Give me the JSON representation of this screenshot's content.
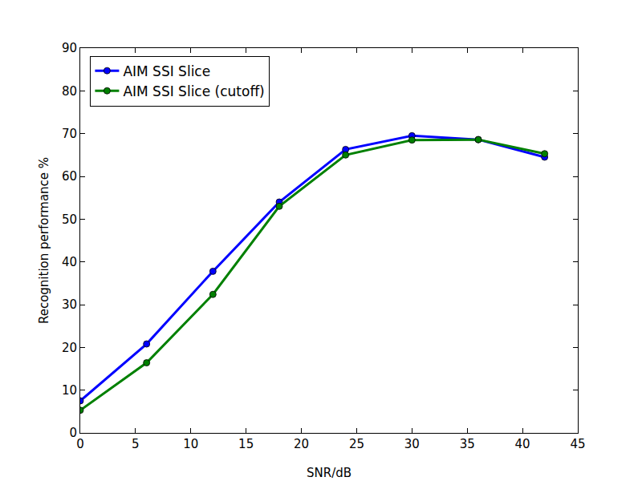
{
  "chart_data": {
    "type": "line",
    "x_label": "SNR/dB",
    "y_label": "Recognition performance %",
    "x": [
      0,
      6,
      12,
      18,
      24,
      30,
      36,
      42
    ],
    "series": [
      {
        "name": "AIM SSI Slice",
        "color": "#0000ff",
        "marker": "circle",
        "line_style": "solid",
        "values": [
          7.5,
          20.8,
          37.8,
          54.0,
          66.3,
          69.5,
          68.6,
          64.5
        ]
      },
      {
        "name": "AIM SSI Slice (cutoff)",
        "color": "#008000",
        "marker": "circle",
        "line_style": "solid",
        "values": [
          5.3,
          16.4,
          32.4,
          53.0,
          65.0,
          68.5,
          68.6,
          65.3
        ]
      }
    ],
    "xlim": [
      0,
      45
    ],
    "xticks": [
      0,
      5,
      10,
      15,
      20,
      25,
      30,
      35,
      40,
      45
    ],
    "ylim": [
      0,
      90
    ],
    "yticks": [
      0,
      10,
      20,
      30,
      40,
      50,
      60,
      70,
      80,
      90
    ],
    "grid": false,
    "legend": "upper left"
  }
}
